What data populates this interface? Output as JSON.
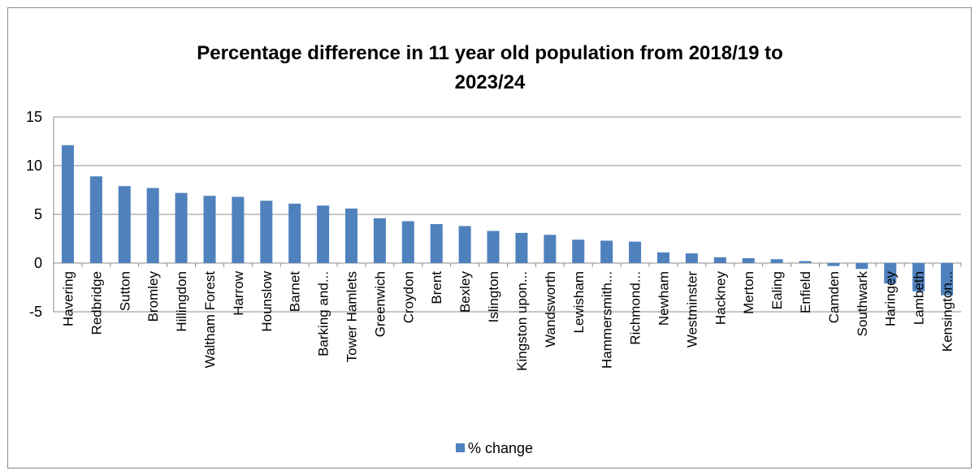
{
  "chart_data": {
    "type": "bar",
    "title": [
      "Percentage difference in 11 year old population from 2018/19 to",
      "2023/24"
    ],
    "xlabel": "",
    "ylabel": "",
    "ylim": [
      -5,
      15
    ],
    "yticks": [
      "15",
      "10",
      "5",
      "0",
      "-5"
    ],
    "grid": true,
    "legend_position": "bottom",
    "bar_color": "#4f81bd",
    "categories": [
      "Havering",
      "Redbridge",
      "Sutton",
      "Bromley",
      "Hillingdon",
      "Waltham Forest",
      "Harrow",
      "Hounslow",
      "Barnet",
      "Barking and...",
      "Tower Hamlets",
      "Greenwich",
      "Croydon",
      "Brent",
      "Bexley",
      "Islington",
      "Kingston upon...",
      "Wandsworth",
      "Lewisham",
      "Hammersmith...",
      "Richmond...",
      "Newham",
      "Westminster",
      "Hackney",
      "Merton",
      "Ealing",
      "Enfield",
      "Camden",
      "Southwark",
      "Haringey",
      "Lambeth",
      "Kensington..."
    ],
    "series": [
      {
        "name": "% change",
        "values": [
          12.1,
          8.9,
          7.9,
          7.7,
          7.2,
          6.9,
          6.8,
          6.4,
          6.1,
          5.9,
          5.6,
          4.6,
          4.3,
          4.0,
          3.8,
          3.3,
          3.1,
          2.9,
          2.4,
          2.3,
          2.2,
          1.1,
          1.0,
          0.6,
          0.5,
          0.4,
          0.2,
          -0.3,
          -0.6,
          -2.1,
          -2.9,
          -3.3
        ]
      }
    ]
  }
}
